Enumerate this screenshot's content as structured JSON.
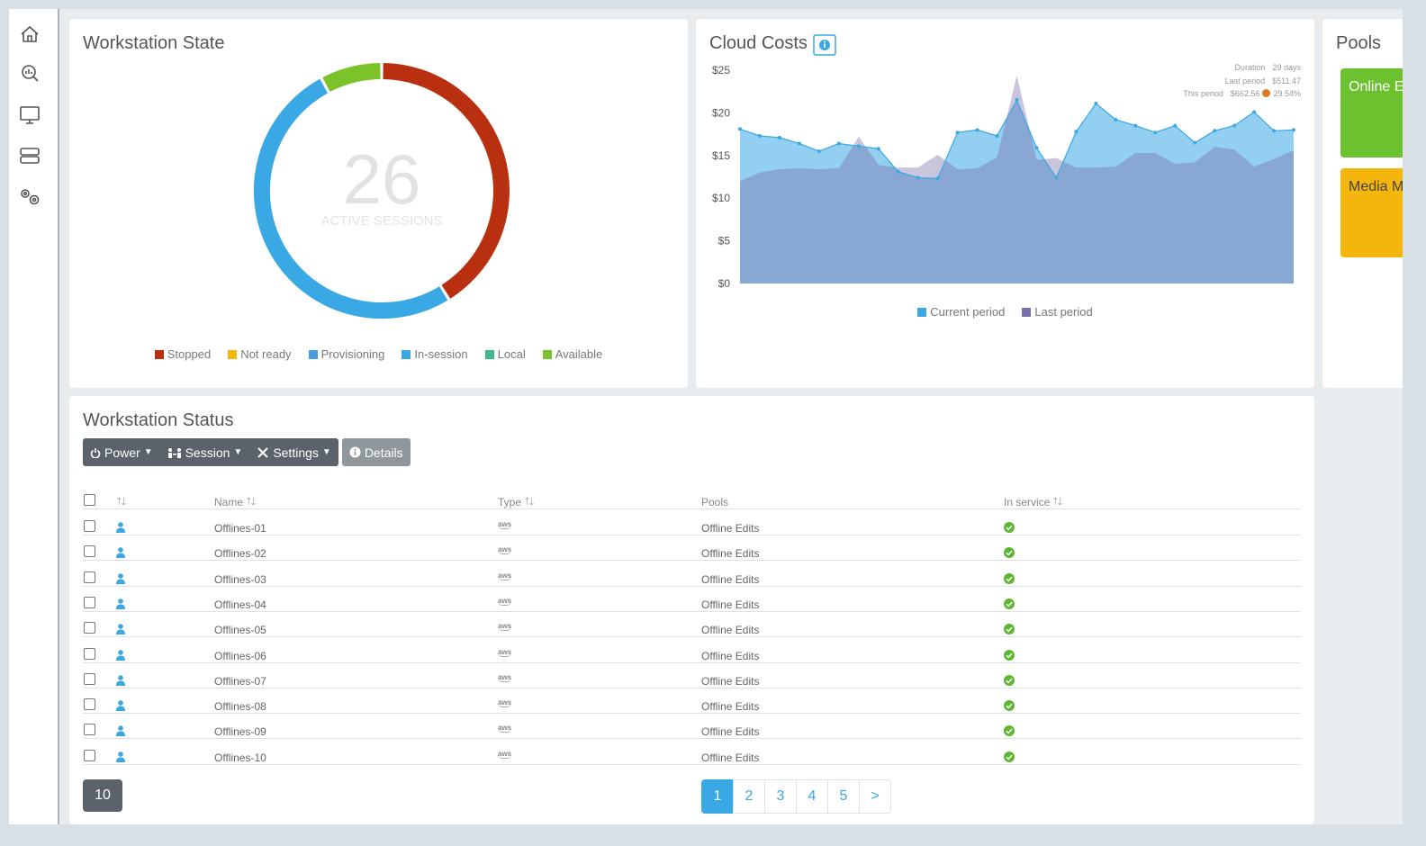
{
  "chart_data": [
    {
      "type": "donut",
      "title": "Workstation State",
      "categories": [
        "Stopped",
        "Not ready",
        "Provisioning",
        "In-session",
        "Local",
        "Available"
      ],
      "values": [
        21,
        0,
        0,
        26,
        0,
        4
      ],
      "colors": [
        "#b8300f",
        "#f5b80a",
        "#4a9de0",
        "#39a8e4",
        "#3dba8a",
        "#7cc22a"
      ],
      "center_value": 26,
      "center_label": "ACTIVE SESSIONS"
    },
    {
      "type": "area",
      "title": "Cloud Costs",
      "ylim": [
        0,
        25
      ],
      "yticks": [
        {
          "value": 0,
          "label": "$0"
        },
        {
          "value": 5,
          "label": "$5"
        },
        {
          "value": 10,
          "label": "$10"
        },
        {
          "value": 15,
          "label": "$15"
        },
        {
          "value": 20,
          "label": "$20"
        },
        {
          "value": 25,
          "label": "$25"
        }
      ],
      "series": [
        {
          "name": "Current period",
          "color": "#39a8e4",
          "values": [
            18.1,
            17.3,
            17.1,
            16.4,
            15.5,
            16.4,
            16.1,
            15.8,
            13.1,
            12.4,
            12.3,
            17.7,
            18.0,
            17.3,
            21.5,
            15.9,
            12.4,
            17.8,
            21.1,
            19.2,
            18.5,
            17.7,
            18.5,
            16.5,
            17.9,
            18.5,
            20.1,
            17.9,
            18.0
          ]
        },
        {
          "name": "Last period",
          "color": "#7a6fa8",
          "values": [
            12.0,
            13.0,
            13.4,
            13.5,
            13.4,
            13.5,
            17.2,
            13.9,
            13.6,
            13.6,
            15.1,
            13.4,
            13.5,
            14.8,
            24.4,
            14.5,
            14.7,
            13.6,
            13.6,
            13.7,
            15.3,
            15.3,
            14.0,
            14.2,
            16.0,
            15.7,
            13.7,
            14.6,
            15.6
          ]
        }
      ],
      "stats": [
        {
          "label": "Duration",
          "value": "29 days"
        },
        {
          "label": "Last period",
          "value": "$511.47"
        },
        {
          "label": "This period",
          "value": "$662.56",
          "change": "29.54%"
        }
      ]
    }
  ],
  "pools": {
    "title": "Pools",
    "cards": [
      {
        "label": "Online E",
        "color": "#6cc22e"
      },
      {
        "label": "Media M",
        "color": "#f4b50c"
      }
    ]
  },
  "status": {
    "title": "Workstation Status",
    "buttons": [
      "Power",
      "Session",
      "Settings",
      "Details"
    ],
    "columns": [
      "Name",
      "Type",
      "Pools",
      "In service"
    ],
    "rows": [
      [
        "Offlines-01",
        "aws",
        "Offline Edits"
      ],
      [
        "Offlines-02",
        "aws",
        "Offline Edits"
      ],
      [
        "Offlines-03",
        "aws",
        "Offline Edits"
      ],
      [
        "Offlines-04",
        "aws",
        "Offline Edits"
      ],
      [
        "Offlines-05",
        "aws",
        "Offline Edits"
      ],
      [
        "Offlines-06",
        "aws",
        "Offline Edits"
      ],
      [
        "Offlines-07",
        "aws",
        "Offline Edits"
      ],
      [
        "Offlines-08",
        "aws",
        "Offline Edits"
      ],
      [
        "Offlines-09",
        "aws",
        "Offline Edits"
      ],
      [
        "Offlines-10",
        "aws",
        "Offline Edits"
      ]
    ],
    "page_size": 10,
    "pages": [
      1,
      2,
      3,
      4,
      5,
      ">"
    ],
    "active_page": 1
  }
}
